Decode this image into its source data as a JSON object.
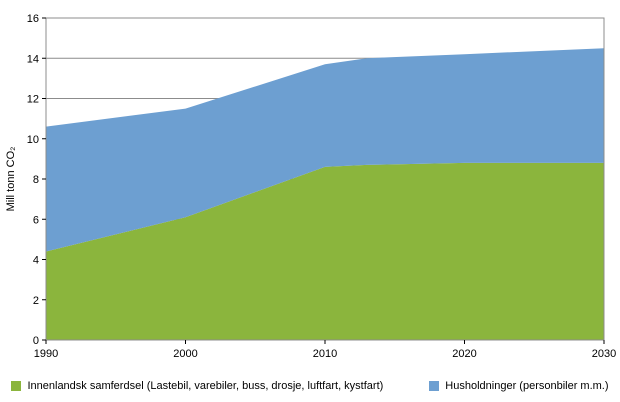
{
  "chart_data": {
    "type": "area",
    "stacked": true,
    "title": "",
    "xlabel": "",
    "ylabel": "Mill tonn CO₂",
    "xlim": [
      1990,
      2030
    ],
    "ylim": [
      0,
      16
    ],
    "xticks": [
      1990,
      2000,
      2010,
      2020,
      2030
    ],
    "yticks": [
      0,
      2,
      4,
      6,
      8,
      10,
      12,
      14,
      16
    ],
    "grid": "horizontal",
    "legend_position": "bottom",
    "x": [
      1990,
      2000,
      2010,
      2013,
      2020,
      2030
    ],
    "series": [
      {
        "name": "Innenlandsk samferdsel (Lastebil, varebiler, buss, drosje, luftfart, kystfart)",
        "color": "#8bb53d",
        "values": [
          4.4,
          6.1,
          8.6,
          8.7,
          8.8,
          8.8
        ]
      },
      {
        "name": "Husholdninger (personbiler m.m.)",
        "color": "#6d9fd1",
        "values": [
          6.2,
          5.4,
          5.1,
          5.3,
          5.4,
          5.7
        ]
      }
    ]
  },
  "colors": {
    "grid": "#8c8c8c",
    "border": "#8c8c8c",
    "axis": "#000000"
  }
}
